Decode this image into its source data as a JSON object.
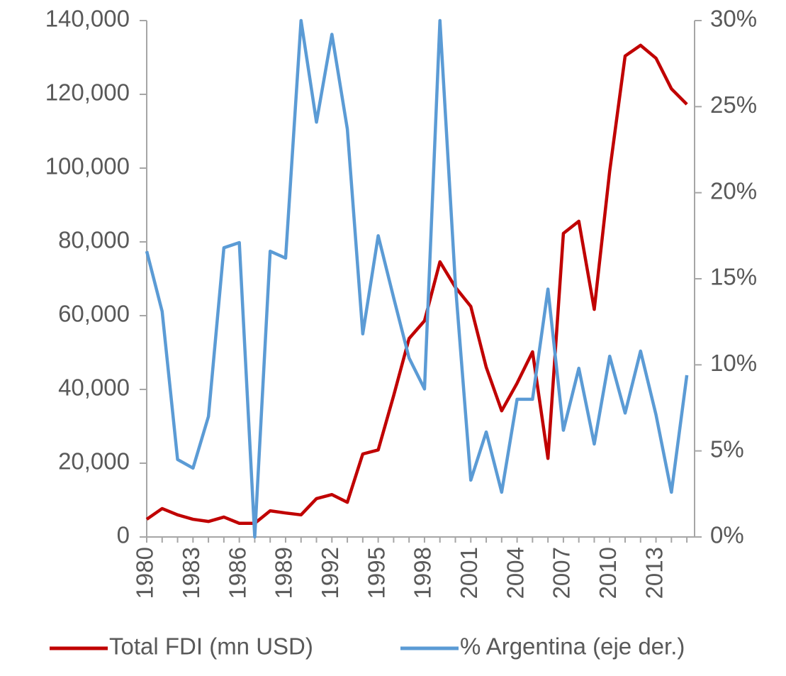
{
  "chart_data": {
    "type": "line",
    "categories": [
      "1980",
      null,
      null,
      "1983",
      null,
      null,
      "1986",
      null,
      null,
      "1989",
      null,
      null,
      "1992",
      null,
      null,
      "1995",
      null,
      null,
      "1998",
      null,
      null,
      "2001",
      null,
      null,
      "2004",
      null,
      null,
      "2007",
      null,
      null,
      "2010",
      null,
      null,
      "2013",
      null,
      null
    ],
    "series": [
      {
        "name": "Total FDI (mn USD)",
        "color": "#c00000",
        "values": [
          4800,
          7700,
          6000,
          4800,
          4200,
          5400,
          3700,
          3700,
          7100,
          6500,
          6000,
          10400,
          11500,
          9400,
          22500,
          23600,
          38300,
          53800,
          58600,
          74600,
          67700,
          62500,
          46000,
          34200,
          41700,
          50200,
          21300,
          82300,
          85600,
          61700,
          99200,
          130400,
          133300,
          129800,
          121500,
          117300
        ]
      },
      {
        "name": "% Argentina (eje der.)",
        "color": "#5b9bd5",
        "axis": "y2",
        "values": [
          16.6,
          13.1,
          4.5,
          4.0,
          7.0,
          16.8,
          17.1,
          0,
          16.6,
          16.2,
          30,
          24.1,
          29.2,
          23.7,
          11.8,
          17.5,
          13.9,
          10.4,
          8.6,
          30,
          14.7,
          3.3,
          6.1,
          2.6,
          8.0,
          8.0,
          14.4,
          6.2,
          9.8,
          5.4,
          10.5,
          7.2,
          10.8,
          7.1,
          2.6,
          9.4
        ]
      }
    ],
    "ylim": [
      0,
      140000
    ],
    "yticks": [
      0,
      {
        "value": 20000,
        "label": "20,000"
      },
      {
        "value": 40000,
        "label": "40,000"
      },
      {
        "value": 60000,
        "label": "60,000"
      },
      {
        "value": 80000,
        "label": "80,000"
      },
      {
        "value": 100000,
        "label": "100,000"
      },
      {
        "value": 120000,
        "label": "120,000"
      },
      {
        "value": 140000,
        "label": "140,000"
      }
    ],
    "y2lim": [
      0,
      30
    ],
    "y2ticks": [
      {
        "value": 0,
        "label": "0%"
      },
      {
        "value": 5,
        "label": "5%"
      },
      {
        "value": 10,
        "label": "10%"
      },
      {
        "value": 15,
        "label": "15%"
      },
      {
        "value": 20,
        "label": "20%"
      },
      {
        "value": 25,
        "label": "25%"
      },
      {
        "value": 30,
        "label": "30%"
      }
    ],
    "legend": "bottom"
  }
}
